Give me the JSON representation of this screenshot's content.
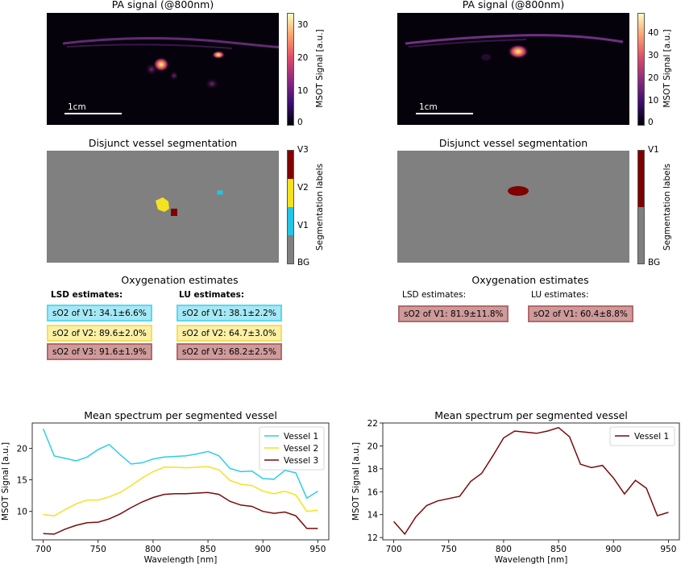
{
  "colors": {
    "vessel1_line": "#2dcde8",
    "vessel2_line": "#f5e21e",
    "vessel3_line": "#7a0a0a",
    "v1_box_fill": "#a6e8f5",
    "v1_box_border": "#5dd7ee",
    "v2_box_fill": "#fbf0a6",
    "v2_box_border": "#f2e05a",
    "v3_box_fill": "#cf9a9a",
    "v3_box_border": "#b06a6a",
    "seg_bg": "#808080",
    "seg_v1": "#22c5e6",
    "seg_v2": "#f5e21e",
    "seg_v3": "#800000"
  },
  "left": {
    "pa_title": "PA signal (@800nm)",
    "scalebar_label": "1cm",
    "pa_colorbar": {
      "label": "MSOT Signal [a.u.]",
      "ticks": [
        "30",
        "20",
        "10",
        "0"
      ]
    },
    "seg_title": "Disjunct vessel segmentation",
    "seg_colorbar": {
      "label": "Segmentation labels",
      "ticks": [
        "V3",
        "V2",
        "V1",
        "BG"
      ]
    },
    "oxy_title": "Oxygenation estimates",
    "lsd_header": "LSD estimates:",
    "lu_header": "LU estimates:",
    "lsd": [
      "sO2 of V1: 34.1±6.6%",
      "sO2 of V2: 89.6±2.0%",
      "sO2 of V3: 91.6±1.9%"
    ],
    "lu": [
      "sO2 of V1: 38.1±2.2%",
      "sO2 of V2: 64.7±3.0%",
      "sO2 of V3: 68.2±2.5%"
    ]
  },
  "right": {
    "pa_title": "PA signal (@800nm)",
    "scalebar_label": "1cm",
    "pa_colorbar": {
      "label": "MSOT Signal [a.u.]",
      "ticks": [
        "40",
        "30",
        "20",
        "10",
        "0"
      ]
    },
    "seg_title": "Disjunct vessel segmentation",
    "seg_colorbar": {
      "label": "Segmentation labels",
      "ticks": [
        "V1",
        "BG"
      ]
    },
    "oxy_title": "Oxygenation estimates",
    "lsd_header": "LSD estimates:",
    "lu_header": "LU estimates:",
    "lsd": [
      "sO2 of V1: 81.9±11.8%"
    ],
    "lu": [
      "sO2 of V1: 60.4±8.8%"
    ]
  },
  "chart_data": [
    {
      "type": "line",
      "title": "Mean spectrum per segmented vessel",
      "xlabel": "Wavelength [nm]",
      "ylabel": "MSOT Signal [a.u.]",
      "xlim": [
        690,
        960
      ],
      "ylim": [
        5.5,
        24
      ],
      "xticks": [
        700,
        750,
        800,
        850,
        900,
        950
      ],
      "yticks": [
        10,
        15,
        20
      ],
      "legend": "top-right",
      "grid": false,
      "x": [
        700,
        710,
        720,
        730,
        740,
        750,
        760,
        770,
        780,
        790,
        800,
        810,
        820,
        830,
        840,
        850,
        860,
        870,
        880,
        890,
        900,
        910,
        920,
        930,
        940,
        950
      ],
      "series": [
        {
          "name": "Vessel 1",
          "values": [
            23.1,
            18.8,
            18.4,
            18.0,
            18.6,
            19.8,
            20.6,
            19.0,
            17.5,
            17.7,
            18.3,
            18.6,
            18.7,
            18.8,
            19.1,
            19.5,
            18.8,
            16.8,
            16.3,
            16.4,
            15.2,
            15.1,
            16.5,
            16.1,
            12.1,
            13.2
          ]
        },
        {
          "name": "Vessel 2",
          "values": [
            9.5,
            9.3,
            10.3,
            11.2,
            11.8,
            11.8,
            12.3,
            13.0,
            14.1,
            15.3,
            16.3,
            17.0,
            17.0,
            16.9,
            17.0,
            17.1,
            16.6,
            14.9,
            14.3,
            14.1,
            13.2,
            12.8,
            13.2,
            12.6,
            10.0,
            10.2
          ]
        },
        {
          "name": "Vessel 3",
          "values": [
            6.5,
            6.4,
            7.2,
            7.8,
            8.2,
            8.3,
            8.8,
            9.6,
            10.6,
            11.5,
            12.2,
            12.7,
            12.8,
            12.8,
            12.9,
            13.0,
            12.7,
            11.6,
            11.0,
            10.8,
            10.0,
            9.7,
            9.9,
            9.3,
            7.3,
            7.3
          ]
        }
      ]
    },
    {
      "type": "line",
      "title": "Mean spectrum per segmented vessel",
      "xlabel": "Wavelength [nm]",
      "ylabel": "MSOT Signal [a.u.]",
      "xlim": [
        690,
        960
      ],
      "ylim": [
        11.8,
        22
      ],
      "xticks": [
        700,
        750,
        800,
        850,
        900,
        950
      ],
      "yticks": [
        12,
        14,
        16,
        18,
        20,
        22
      ],
      "legend": "top-right",
      "grid": false,
      "x": [
        700,
        710,
        720,
        730,
        740,
        750,
        760,
        770,
        780,
        790,
        800,
        810,
        820,
        830,
        840,
        850,
        860,
        870,
        880,
        890,
        900,
        910,
        920,
        930,
        940,
        950
      ],
      "series": [
        {
          "name": "Vessel 1",
          "values": [
            13.4,
            12.3,
            13.8,
            14.8,
            15.2,
            15.4,
            15.6,
            16.9,
            17.6,
            19.1,
            20.7,
            21.3,
            21.2,
            21.1,
            21.3,
            21.6,
            20.8,
            18.4,
            18.1,
            18.3,
            17.2,
            15.8,
            17.0,
            16.3,
            13.9,
            14.2
          ]
        }
      ]
    }
  ]
}
